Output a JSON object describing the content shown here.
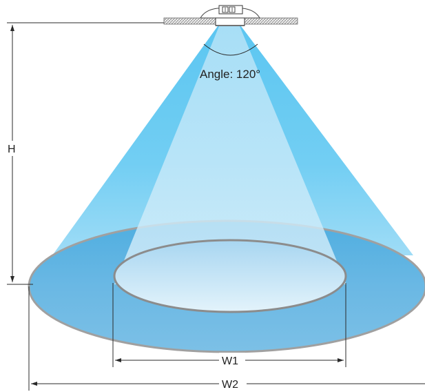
{
  "diagram": {
    "angle_label": "Angle: 120°",
    "height_label": "H",
    "inner_width_label": "W1",
    "outer_width_label": "W2"
  },
  "colors": {
    "cone_outer_top": "#8fd6f5",
    "cone_outer_bottom": "#4fc0ee",
    "cone_inner": "#cbe9f8",
    "outer_ellipse_fill": "#6cb8e2",
    "inner_ellipse_fill": "#d9eef9",
    "ellipse_stroke": "#9a9a9a",
    "dimension_line": "#2a2a2a"
  },
  "icons": {
    "fixture": "ceiling-downlight-icon"
  }
}
